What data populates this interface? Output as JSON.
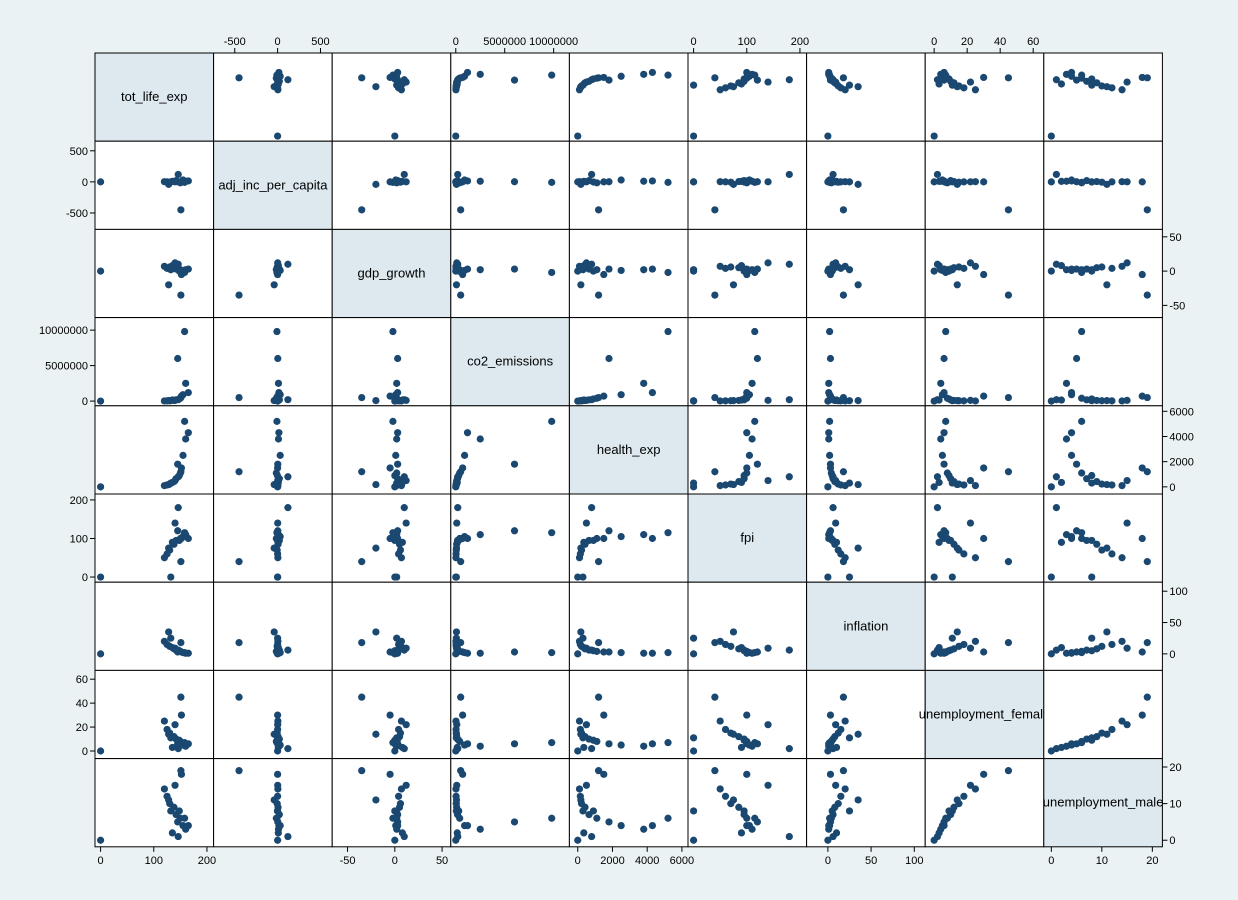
{
  "chart_data": {
    "type": "scatter",
    "subtype": "scatter-matrix",
    "title": "",
    "point_color": "#1a4870",
    "diagonal_fill": "#dde9ee",
    "background": "#eaf2f3",
    "grid": false,
    "variables": [
      {
        "name": "tot_life_exp",
        "range": [
          -3,
          205
        ],
        "ticks": [
          "0",
          "100",
          "200"
        ],
        "tick_values": [
          0,
          100,
          200
        ],
        "tick_side": "bottom"
      },
      {
        "name": "adj_inc_per_capita",
        "range": [
          -700,
          590
        ],
        "ticks": [
          "-500",
          "0",
          "500"
        ],
        "tick_values": [
          -500,
          0,
          500
        ],
        "tick_side": "top-left"
      },
      {
        "name": "gdp_growth",
        "range": [
          -62,
          55
        ],
        "ticks": [
          "-50",
          "0",
          "50"
        ],
        "tick_values": [
          -50,
          0,
          50
        ],
        "tick_side": "bottom-right"
      },
      {
        "name": "co2_emissions",
        "range": [
          -100000,
          11200000
        ],
        "ticks": [
          "0",
          "5000000",
          "10000000"
        ],
        "tick_values": [
          0,
          5000000,
          10000000
        ],
        "tick_side": "top-left"
      },
      {
        "name": "health_exp",
        "range": [
          -250,
          6120
        ],
        "ticks": [
          "0",
          "2000",
          "4000",
          "6000"
        ],
        "tick_values": [
          0,
          2000,
          4000,
          6000
        ],
        "tick_side": "bottom-right"
      },
      {
        "name": "fpi",
        "range": [
          -3,
          205
        ],
        "ticks": [
          "0",
          "100",
          "200"
        ],
        "tick_values": [
          0,
          100,
          200
        ],
        "tick_side": "top-left"
      },
      {
        "name": "inflation",
        "range": [
          -20,
          108
        ],
        "ticks": [
          "0",
          "50",
          "100"
        ],
        "tick_values": [
          0,
          50,
          100
        ],
        "tick_side": "bottom-right"
      },
      {
        "name": "unemployment_female",
        "range": [
          -3,
          64
        ],
        "ticks": [
          "0",
          "20",
          "40",
          "60"
        ],
        "tick_values": [
          0,
          20,
          40,
          60
        ],
        "tick_side": "top-left"
      },
      {
        "name": "unemployment_male",
        "range": [
          -0.7,
          21.2
        ],
        "ticks": [
          "0",
          "10",
          "20"
        ],
        "tick_values": [
          0,
          10,
          20
        ],
        "tick_side": "bottom-right"
      }
    ],
    "observations": [
      [
        142,
        20,
        3,
        180000,
        650,
        95,
        6,
        10,
        7
      ],
      [
        150,
        -15,
        2,
        400000,
        1100,
        100,
        4,
        8,
        6
      ],
      [
        138,
        5,
        5,
        90000,
        420,
        85,
        8,
        12,
        9
      ],
      [
        155,
        30,
        1,
        900000,
        2500,
        105,
        2,
        5,
        4
      ],
      [
        130,
        -5,
        6,
        50000,
        220,
        70,
        12,
        15,
        10
      ],
      [
        160,
        10,
        2,
        2500000,
        3800,
        110,
        1,
        4,
        3
      ],
      [
        125,
        0,
        4,
        30000,
        150,
        60,
        15,
        18,
        12
      ],
      [
        145,
        2,
        3,
        6000000,
        1800,
        120,
        3,
        6,
        5
      ],
      [
        158,
        -8,
        -2,
        9800000,
        5200,
        115,
        2,
        7,
        6
      ],
      [
        120,
        3,
        7,
        20000,
        100,
        50,
        20,
        25,
        14
      ],
      [
        148,
        -2,
        0,
        300000,
        900,
        95,
        5,
        9,
        8
      ],
      [
        135,
        8,
        8,
        150000,
        350,
        90,
        10,
        3,
        2
      ],
      [
        152,
        0,
        -5,
        700000,
        1500,
        100,
        3,
        30,
        18
      ],
      [
        140,
        1,
        12,
        100000,
        500,
        140,
        9,
        22,
        15
      ],
      [
        0,
        0,
        0,
        0,
        0,
        0,
        0,
        0,
        0
      ],
      [
        132,
        0,
        2,
        60000,
        300,
        0,
        25,
        11,
        8
      ],
      [
        165,
        15,
        3,
        1200000,
        4300,
        100,
        1,
        6,
        4
      ],
      [
        128,
        -40,
        -20,
        70000,
        180,
        75,
        35,
        14,
        11
      ],
      [
        146,
        120,
        10,
        200000,
        800,
        180,
        6,
        2,
        1
      ],
      [
        151,
        -450,
        -35,
        500000,
        1200,
        40,
        18,
        45,
        19
      ]
    ]
  }
}
